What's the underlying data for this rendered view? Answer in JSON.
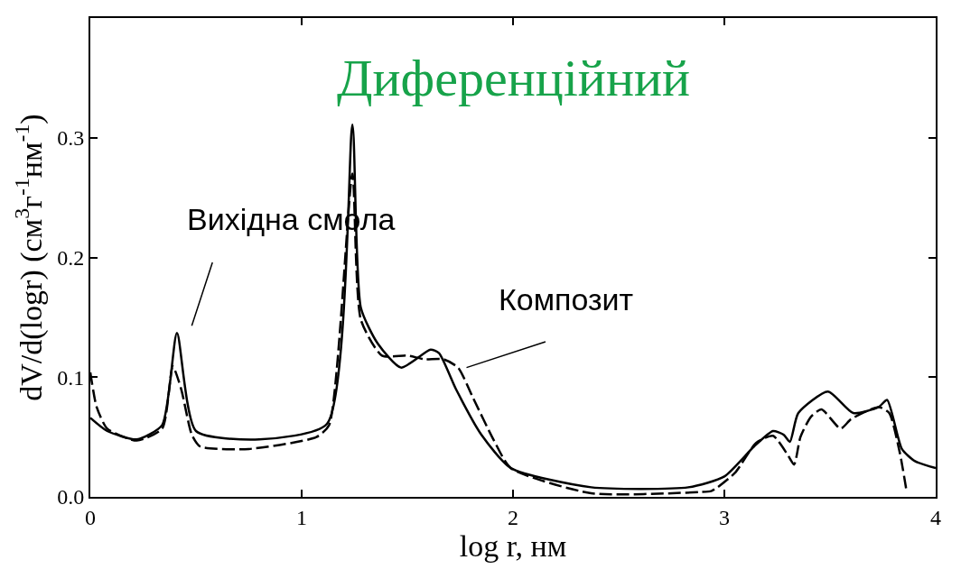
{
  "chart_data": {
    "type": "line",
    "title": "Диференційний",
    "xlabel": "log r, нм",
    "ylabel": "dV/d(logr) (см$^{3}$г$^{-1}$нм$^{-1}$)",
    "xlim": [
      0,
      4
    ],
    "ylim": [
      0,
      0.4
    ],
    "xticks": [
      0,
      1,
      2,
      3,
      4
    ],
    "yticks": [
      {
        "value": 0,
        "label": "0.0"
      },
      0.1,
      0.2,
      0.3
    ],
    "grid": false,
    "legend": false,
    "marker": "none",
    "series": [
      {
        "name": "Вихідна смола",
        "color": "#000000",
        "line_style": "solid",
        "x": [
          0,
          0.08,
          0.22,
          0.34,
          0.41,
          0.5,
          0.8,
          1.12,
          1.24,
          1.28,
          1.36,
          1.47,
          1.61,
          1.65,
          1.73,
          1.85,
          1.99,
          2.37,
          2.83,
          3.0,
          3.14,
          3.23,
          3.28,
          3.31,
          3.35,
          3.49,
          3.61,
          3.73,
          3.77,
          3.84,
          3.9,
          4.0
        ],
        "values": [
          0.066,
          0.055,
          0.048,
          0.06,
          0.137,
          0.055,
          0.048,
          0.061,
          0.311,
          0.158,
          0.128,
          0.108,
          0.123,
          0.12,
          0.09,
          0.052,
          0.024,
          0.008,
          0.008,
          0.017,
          0.042,
          0.055,
          0.052,
          0.046,
          0.07,
          0.088,
          0.07,
          0.075,
          0.081,
          0.04,
          0.03,
          0.024
        ]
      },
      {
        "name": "Композит",
        "color": "#000000",
        "line_style": "dashed",
        "x": [
          0,
          0.03,
          0.08,
          0.22,
          0.34,
          0.39,
          0.43,
          0.48,
          0.52,
          0.75,
          1.07,
          1.13,
          1.24,
          1.28,
          1.38,
          1.5,
          1.58,
          1.67,
          1.74,
          1.81,
          1.91,
          1.99,
          2.37,
          2.88,
          2.94,
          3.05,
          3.15,
          3.23,
          3.3,
          3.33,
          3.36,
          3.41,
          3.46,
          3.55,
          3.6,
          3.73,
          3.78,
          3.83,
          3.86
        ],
        "values": [
          0.104,
          0.075,
          0.057,
          0.047,
          0.057,
          0.109,
          0.09,
          0.052,
          0.042,
          0.04,
          0.05,
          0.06,
          0.27,
          0.148,
          0.118,
          0.118,
          0.115,
          0.115,
          0.108,
          0.083,
          0.047,
          0.024,
          0.003,
          0.004,
          0.005,
          0.02,
          0.045,
          0.051,
          0.035,
          0.027,
          0.05,
          0.067,
          0.073,
          0.057,
          0.065,
          0.075,
          0.07,
          0.037,
          0.007
        ]
      }
    ]
  }
}
